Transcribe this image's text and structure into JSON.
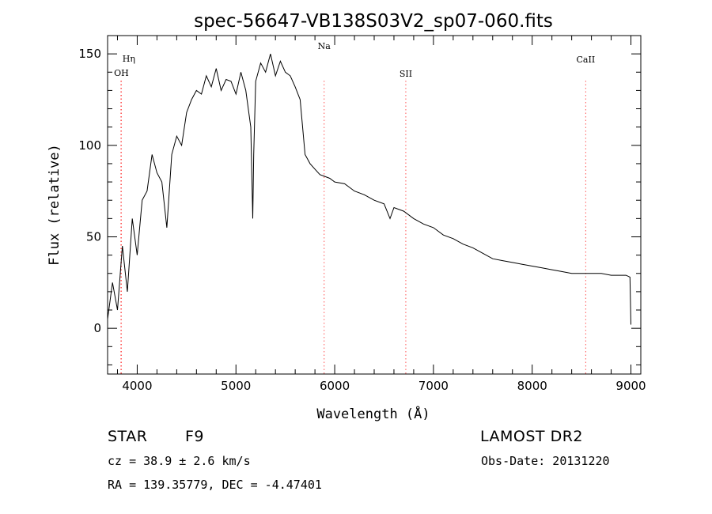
{
  "chart_data": {
    "type": "line",
    "title": "spec-56647-VB138S03V2_sp07-060.fits",
    "xlabel": "Wavelength (Å)",
    "ylabel": "Flux (relative)",
    "xlim": [
      3700,
      9100
    ],
    "ylim": [
      -25,
      160
    ],
    "x_ticks": [
      4000,
      5000,
      6000,
      7000,
      8000,
      9000
    ],
    "x_tick_labels": [
      "4000",
      "5000",
      "6000",
      "7000",
      "8000",
      "9000"
    ],
    "y_ticks": [
      0,
      50,
      100,
      150
    ],
    "y_tick_labels": [
      "0",
      "50",
      "100",
      "150"
    ],
    "grid": false,
    "line_color": "#000000",
    "marker_color": "#ff5555",
    "series": [
      {
        "x": [
          3700,
          3750,
          3800,
          3850,
          3900,
          3950,
          4000,
          4050,
          4100,
          4150,
          4200,
          4250,
          4300,
          4350,
          4400,
          4450,
          4500,
          4550,
          4600,
          4650,
          4700,
          4750,
          4800,
          4850,
          4900,
          4950,
          5000,
          5050,
          5100,
          5150,
          5170,
          5180,
          5200,
          5250,
          5300,
          5350,
          5400,
          5450,
          5500,
          5550,
          5600,
          5650,
          5700,
          5750,
          5800,
          5850,
          5900,
          5950,
          6000,
          6100,
          6200,
          6300,
          6400,
          6500,
          6560,
          6600,
          6700,
          6800,
          6900,
          7000,
          7100,
          7200,
          7300,
          7400,
          7500,
          7600,
          7700,
          7800,
          7900,
          8000,
          8100,
          8200,
          8300,
          8400,
          8500,
          8600,
          8700,
          8800,
          8900,
          8950,
          8990,
          9000
        ],
        "y": [
          5,
          25,
          10,
          45,
          20,
          60,
          40,
          70,
          75,
          95,
          85,
          80,
          55,
          95,
          105,
          100,
          118,
          125,
          130,
          128,
          138,
          132,
          142,
          130,
          136,
          135,
          128,
          140,
          130,
          110,
          60,
          95,
          135,
          145,
          140,
          150,
          138,
          146,
          140,
          138,
          132,
          125,
          95,
          90,
          87,
          84,
          83,
          82,
          80,
          79,
          75,
          73,
          70,
          68,
          60,
          66,
          64,
          60,
          57,
          55,
          51,
          49,
          46,
          44,
          41,
          38,
          37,
          36,
          35,
          34,
          33,
          32,
          31,
          30,
          30,
          30,
          30,
          29,
          29,
          29,
          28,
          2
        ]
      }
    ],
    "lines": [
      {
        "label": "OH",
        "x": 3840
      },
      {
        "label": "Hη",
        "x": 3835
      },
      {
        "label": "Na",
        "x": 5893
      },
      {
        "label": "SII",
        "x": 6720
      },
      {
        "label": "CaII",
        "x": 8542
      }
    ]
  },
  "info": {
    "object_class": "STAR",
    "subclass": "F9",
    "survey": "LAMOST DR2",
    "cz": "cz = 38.9 ± 2.6 km/s",
    "obs_date": "Obs-Date: 20131220",
    "coords": "RA = 139.35779, DEC =  -4.47401"
  }
}
